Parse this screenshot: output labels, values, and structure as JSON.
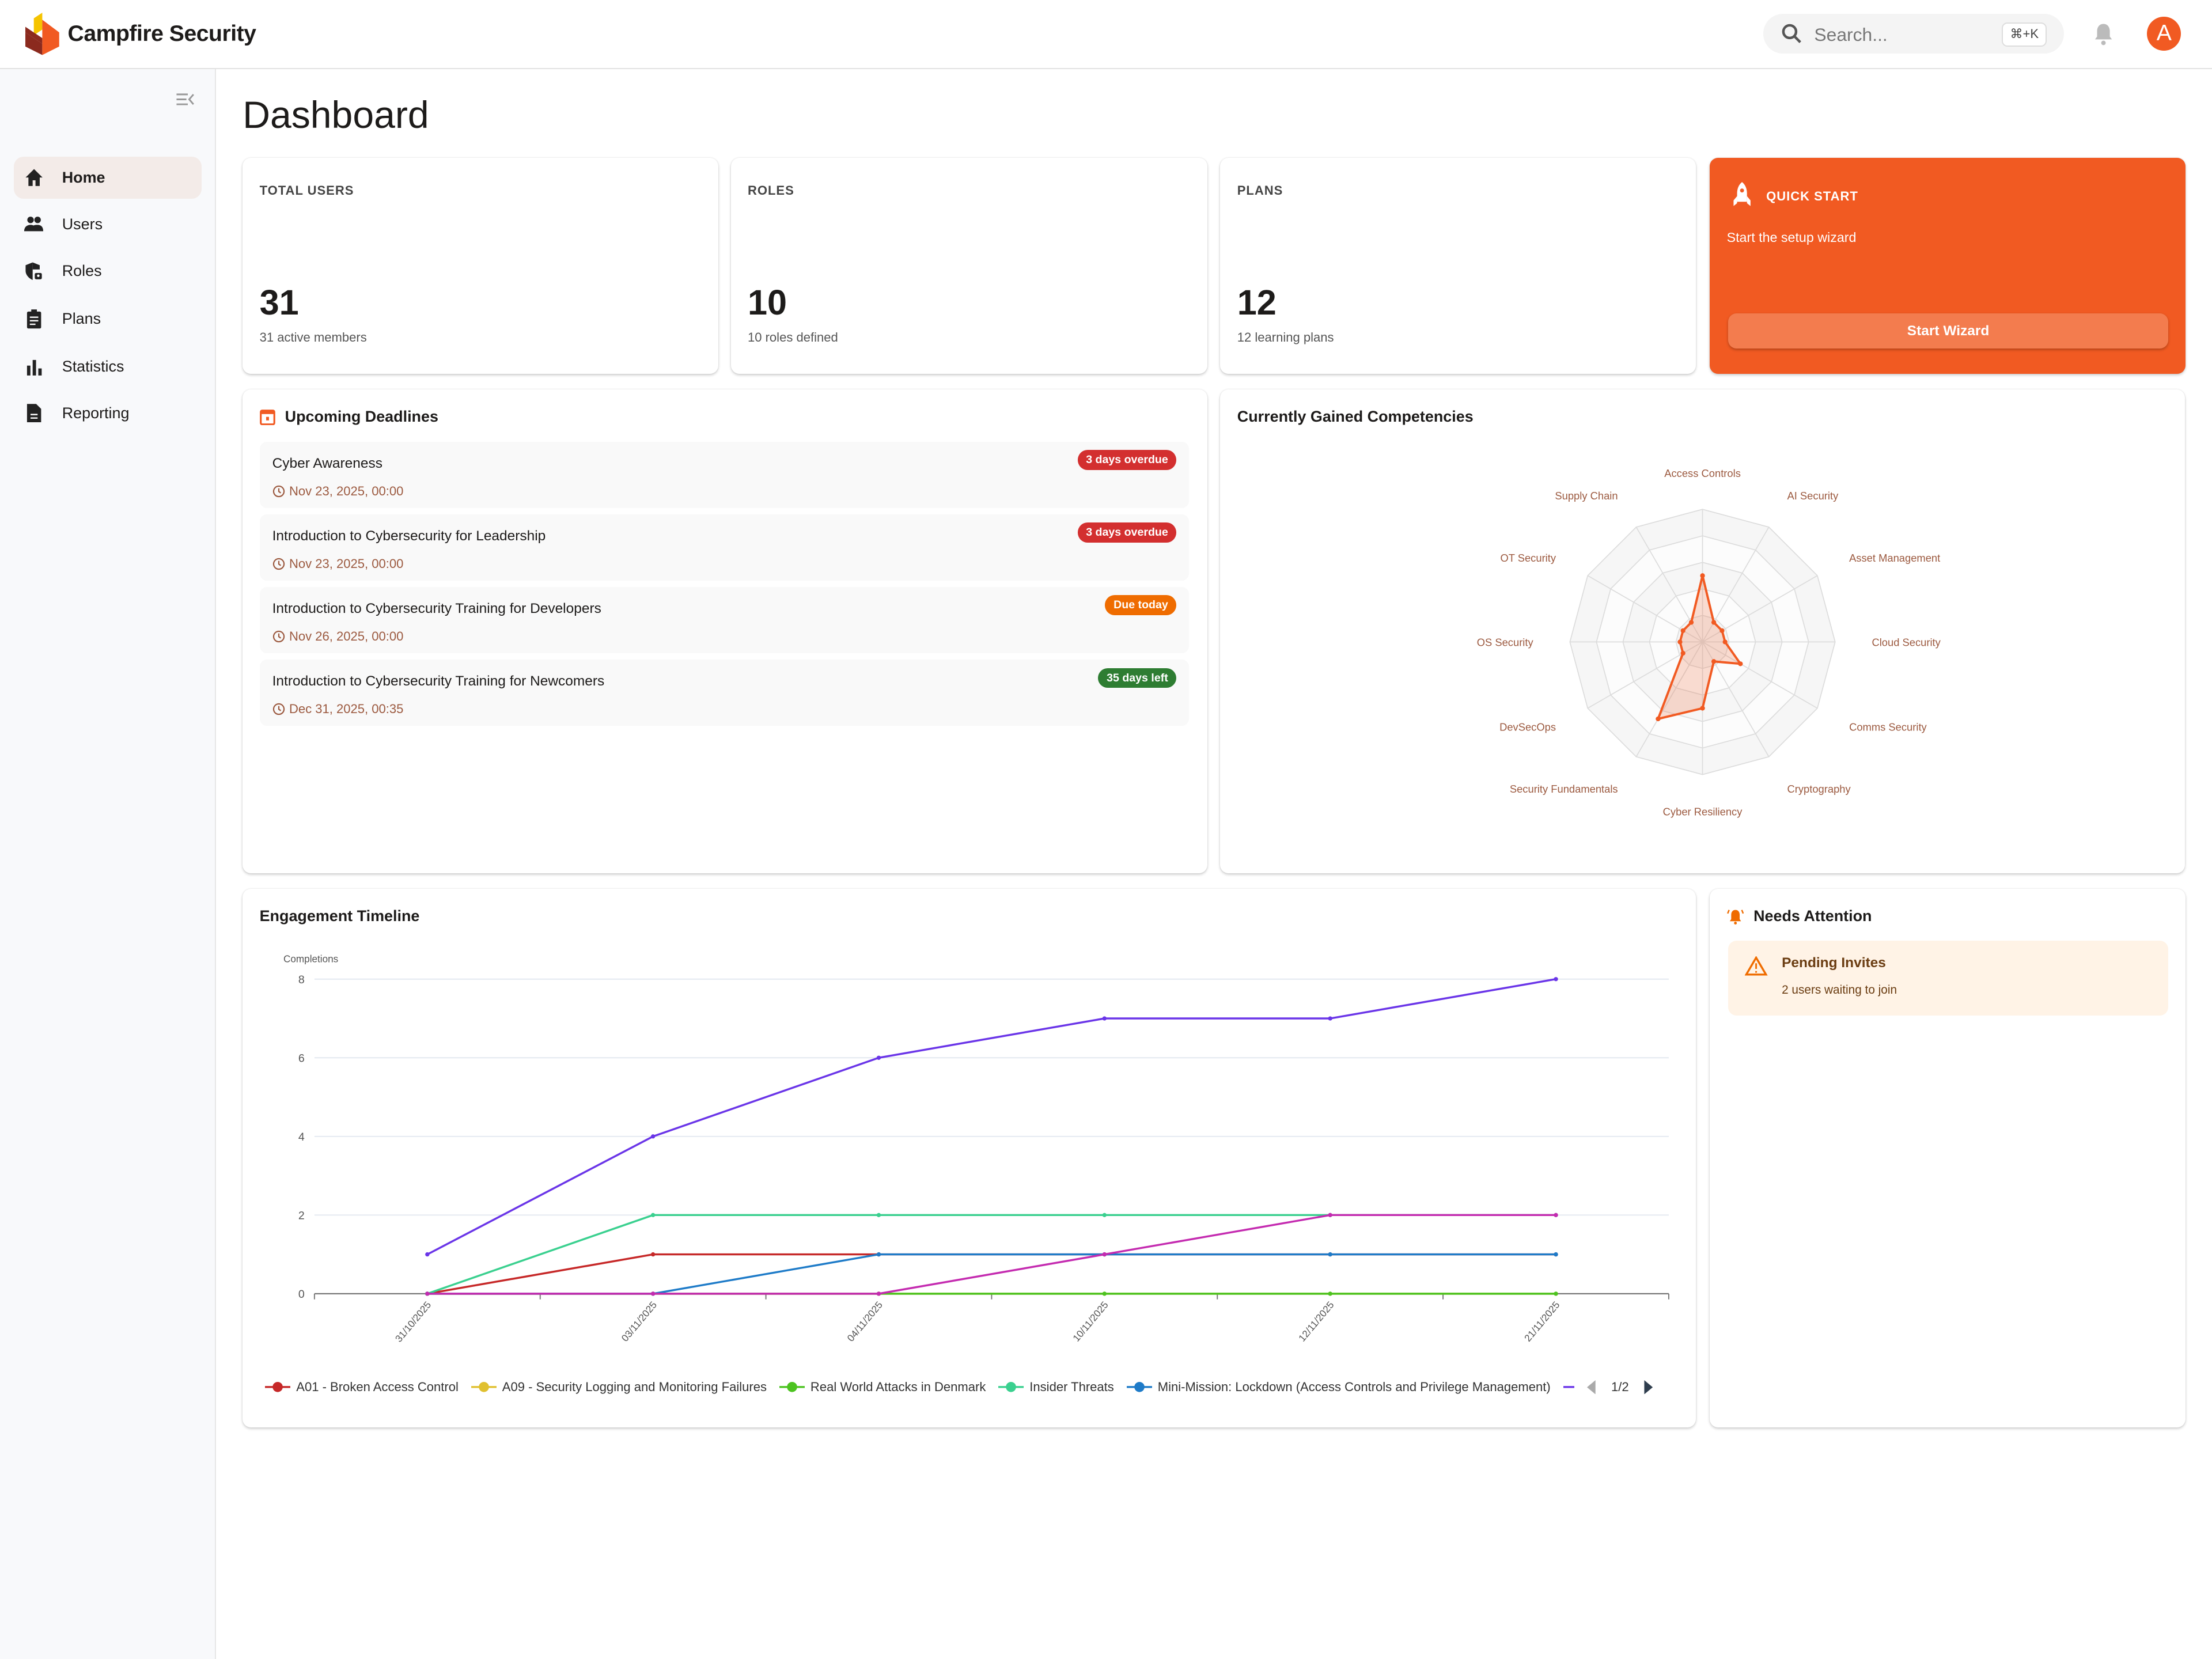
{
  "app": {
    "name": "Campfire Security"
  },
  "header": {
    "search_placeholder": "Search...",
    "shortcut": "⌘+K",
    "avatar_initial": "A"
  },
  "sidebar": {
    "items": [
      {
        "label": "Home",
        "icon": "home-icon",
        "active": true
      },
      {
        "label": "Users",
        "icon": "users-icon"
      },
      {
        "label": "Roles",
        "icon": "shield-lock-icon"
      },
      {
        "label": "Plans",
        "icon": "clipboard-icon"
      },
      {
        "label": "Statistics",
        "icon": "bar-chart-icon"
      },
      {
        "label": "Reporting",
        "icon": "document-icon"
      }
    ]
  },
  "page": {
    "title": "Dashboard"
  },
  "stats": [
    {
      "label": "TOTAL USERS",
      "value": "31",
      "sub": "31 active members"
    },
    {
      "label": "ROLES",
      "value": "10",
      "sub": "10 roles defined"
    },
    {
      "label": "PLANS",
      "value": "12",
      "sub": "12 learning plans"
    }
  ],
  "quick_start": {
    "label": "QUICK START",
    "text": "Start the setup wizard",
    "button": "Start Wizard",
    "color": "#f15a22"
  },
  "deadlines": {
    "title": "Upcoming Deadlines",
    "items": [
      {
        "name": "Cyber Awareness",
        "date": "Nov 23, 2025, 00:00",
        "badge": "3 days overdue",
        "badge_color": "#d32f2f"
      },
      {
        "name": "Introduction to Cybersecurity for Leadership",
        "date": "Nov 23, 2025, 00:00",
        "badge": "3 days overdue",
        "badge_color": "#d32f2f"
      },
      {
        "name": "Introduction to Cybersecurity Training for Developers",
        "date": "Nov 26, 2025, 00:00",
        "badge": "Due today",
        "badge_color": "#ef6c00"
      },
      {
        "name": "Introduction to Cybersecurity Training for Newcomers",
        "date": "Dec 31, 2025, 00:35",
        "badge": "35 days left",
        "badge_color": "#2e7d32"
      }
    ]
  },
  "competencies": {
    "title": "Currently Gained Competencies"
  },
  "engagement": {
    "title": "Engagement Timeline",
    "legend_page": "1/2"
  },
  "attention": {
    "title": "Needs Attention",
    "items": [
      {
        "title": "Pending Invites",
        "text": "2 users waiting to join"
      }
    ]
  },
  "chart_data": [
    {
      "type": "radar",
      "title": "Currently Gained Competencies",
      "max": 100,
      "rings": 5,
      "color": "#f15a22",
      "categories": [
        "Access Controls",
        "AI Security",
        "Asset Management",
        "Cloud Security",
        "Comms Security",
        "Cryptography",
        "Cyber Resiliency",
        "Security Fundamentals",
        "DevSecOps",
        "OS Security",
        "OT Security",
        "Supply Chain"
      ],
      "values": [
        50,
        17,
        17,
        17,
        33,
        17,
        50,
        67,
        17,
        17,
        17,
        17
      ]
    },
    {
      "type": "line",
      "title": "Engagement Timeline",
      "ylabel": "Completions",
      "ylim": [
        0,
        8
      ],
      "yticks": [
        0,
        2,
        4,
        6,
        8
      ],
      "grid": true,
      "legend_placement": "bottom",
      "x": [
        "31/10/2025",
        "03/11/2025",
        "04/11/2025",
        "10/11/2025",
        "12/11/2025",
        "21/11/2025"
      ],
      "series": [
        {
          "name": "A01 - Broken Access Control",
          "color": "#c62828",
          "values": [
            0,
            1,
            1,
            1,
            1,
            1
          ]
        },
        {
          "name": "A09 - Security Logging and Monitoring Failures",
          "color": "#e0c030",
          "values": [
            0,
            0,
            0,
            0,
            0,
            0
          ]
        },
        {
          "name": "Real World Attacks in Denmark",
          "color": "#4cc320",
          "values": [
            0,
            0,
            0,
            0,
            0,
            0
          ]
        },
        {
          "name": "Insider Threats",
          "color": "#3ad08f",
          "values": [
            0,
            2,
            2,
            2,
            2,
            2
          ]
        },
        {
          "name": "Mini-Mission: Lockdown (Access Controls and Privilege Management)",
          "color": "#1e7bc8",
          "values": [
            0,
            0,
            1,
            1,
            1,
            1
          ]
        },
        {
          "color": "#6a35e8",
          "values": [
            1,
            4,
            6,
            7,
            7,
            8
          ]
        },
        {
          "color": "#c42bb0",
          "values": [
            0,
            0,
            0,
            1,
            2,
            2
          ]
        }
      ]
    }
  ]
}
